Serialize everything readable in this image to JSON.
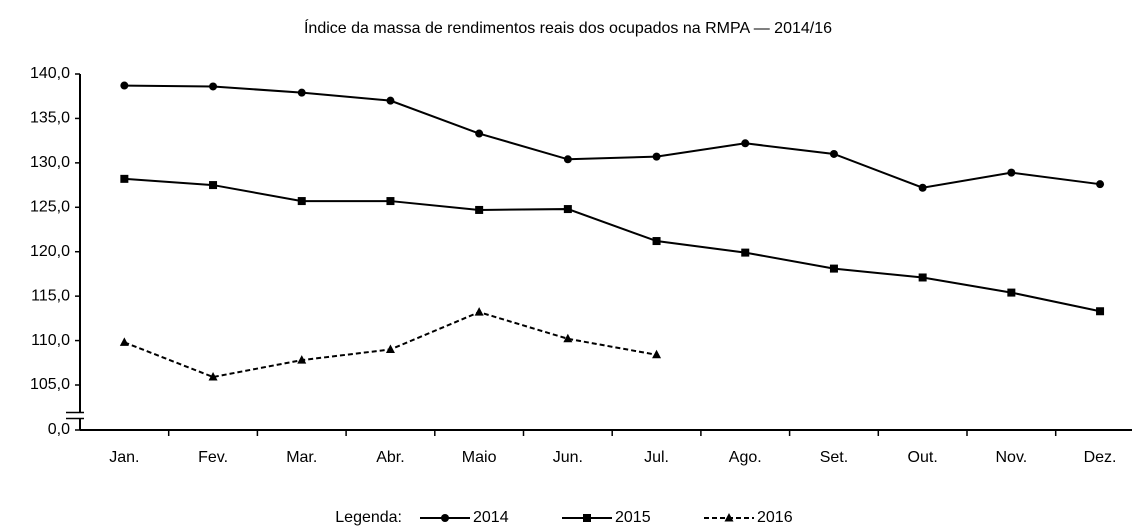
{
  "chart_data": {
    "type": "line",
    "title": "Índice da massa de rendimentos reais dos ocupados na RMPA — 2014/16",
    "categories": [
      "Jan.",
      "Fev.",
      "Mar.",
      "Abr.",
      "Maio",
      "Jun.",
      "Jul.",
      "Ago.",
      "Set.",
      "Out.",
      "Nov.",
      "Dez."
    ],
    "series": [
      {
        "name": "2014",
        "color": "#000000",
        "marker": "circle",
        "dashed": false,
        "values": [
          138.7,
          138.6,
          137.9,
          137.0,
          133.3,
          130.4,
          130.7,
          132.2,
          131.0,
          127.2,
          128.9,
          127.6
        ]
      },
      {
        "name": "2015",
        "color": "#000000",
        "marker": "square",
        "dashed": false,
        "values": [
          128.2,
          127.5,
          125.7,
          125.7,
          124.7,
          124.8,
          121.2,
          119.9,
          118.1,
          117.1,
          115.4,
          113.3
        ]
      },
      {
        "name": "2016",
        "color": "#000000",
        "marker": "triangle",
        "dashed": true,
        "values": [
          109.8,
          105.9,
          107.8,
          109.0,
          113.2,
          110.2,
          108.4,
          null,
          null,
          null,
          null,
          null
        ]
      }
    ],
    "ylim": [
      0,
      140
    ],
    "yticks": [
      {
        "value": 0,
        "label": "0,0"
      },
      {
        "value": 105,
        "label": "105,0"
      },
      {
        "value": 110,
        "label": "110,0"
      },
      {
        "value": 115,
        "label": "115,0"
      },
      {
        "value": 120,
        "label": "120,0"
      },
      {
        "value": 125,
        "label": "125,0"
      },
      {
        "value": 130,
        "label": "130,0"
      },
      {
        "value": 135,
        "label": "135,0"
      },
      {
        "value": 140,
        "label": "140,0"
      }
    ],
    "axis_break": true,
    "grid": false,
    "legend_title": "Legenda:",
    "legend": "bottom"
  }
}
